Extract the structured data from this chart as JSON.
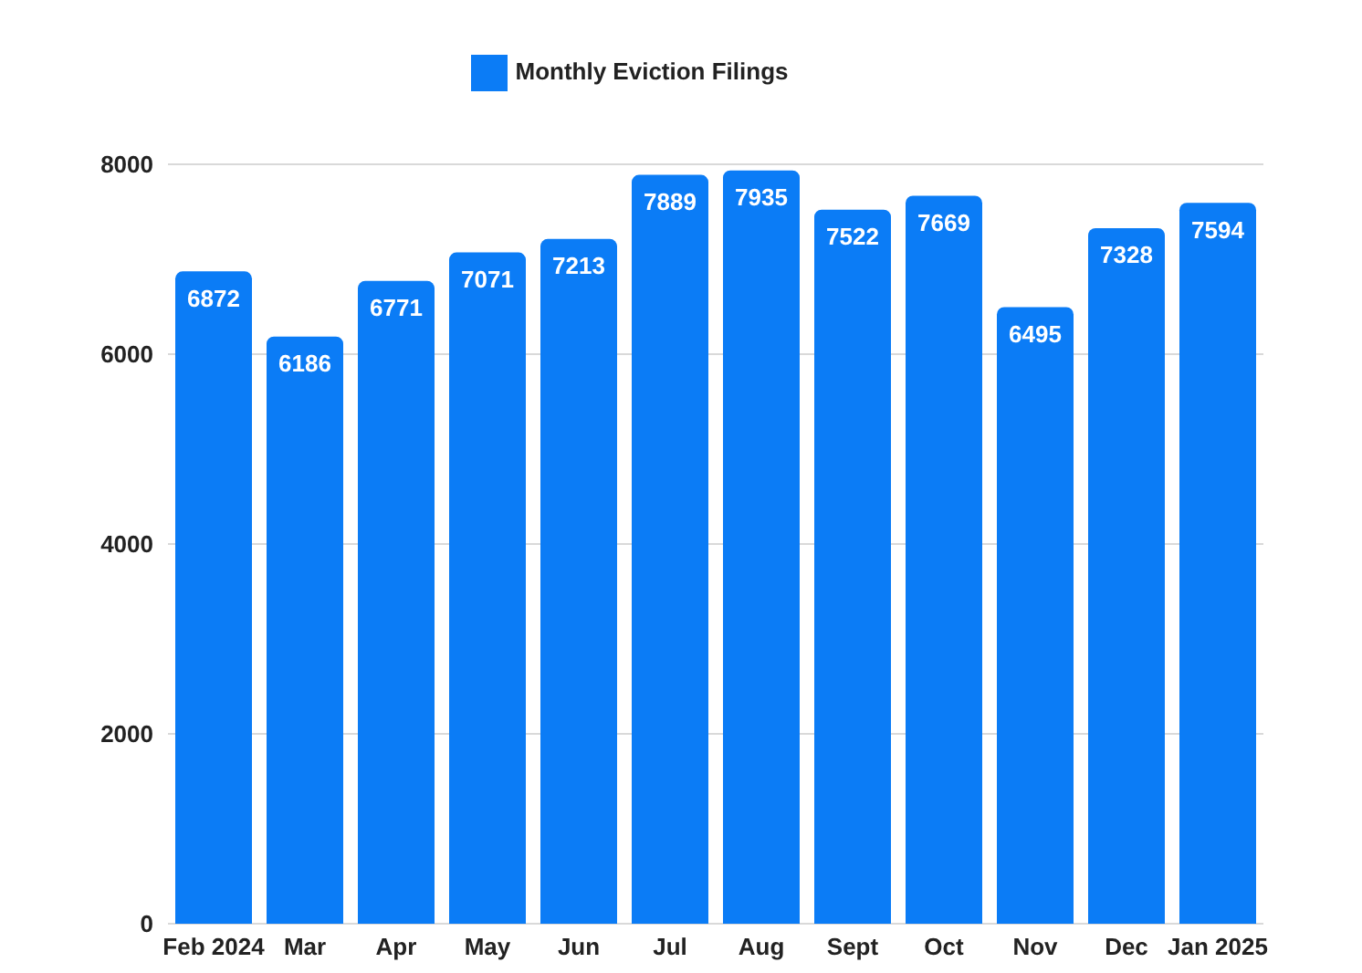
{
  "chart_data": {
    "type": "bar",
    "categories": [
      "Feb 2024",
      "Mar",
      "Apr",
      "May",
      "Jun",
      "Jul",
      "Aug",
      "Sept",
      "Oct",
      "Nov",
      "Dec",
      "Jan 2025"
    ],
    "series": [
      {
        "name": "Monthly Eviction Filings",
        "color": "#0b7cf6",
        "values": [
          6872,
          6186,
          6771,
          7071,
          7213,
          7889,
          7935,
          7522,
          7669,
          6495,
          7328,
          7594
        ]
      }
    ],
    "ylim": [
      0,
      8000
    ],
    "yticks": [
      0,
      2000,
      4000,
      6000,
      8000
    ],
    "grid": "y",
    "legend": "top",
    "data_labels": true
  }
}
